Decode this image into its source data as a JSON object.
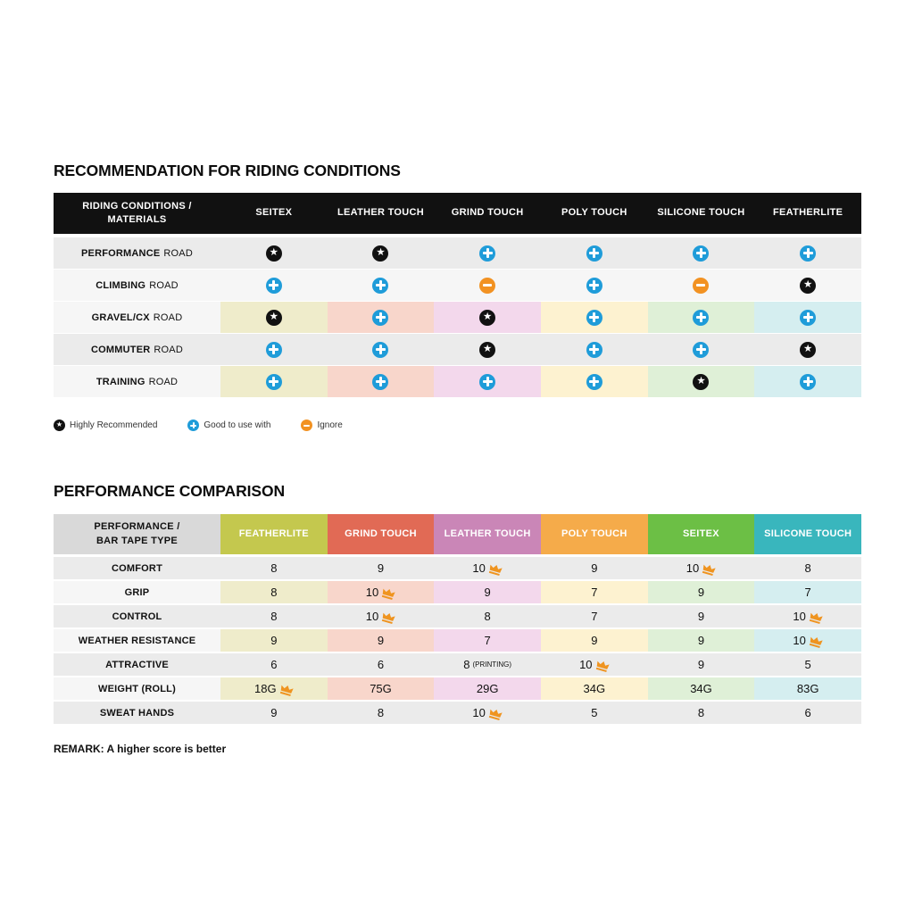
{
  "colors": {
    "table1_header_bg": "#111111",
    "star_black": "#111111",
    "blue": "#1f9cd9",
    "orange_ignore": "#f29222",
    "row_gray": "#ebebeb",
    "row_light": "#f6f6f6",
    "tints": [
      "#efeccb",
      "#f8d6cb",
      "#f3d8ec",
      "#fdf2d0",
      "#dff0d7",
      "#d5eef0"
    ],
    "perf_header": [
      "#d9d9d9",
      "#c4c84e",
      "#e16a55",
      "#ca86b7",
      "#f5ab4a",
      "#6cbf45",
      "#39b6bd"
    ],
    "crown": "#ef9420"
  },
  "chart_data": [
    {
      "type": "table",
      "title": "RECOMMENDATION FOR RIDING CONDITIONS",
      "columns": [
        "RIDING CONDITIONS /\nMATERIALS",
        "SEITEX",
        "LEATHER TOUCH",
        "GRIND TOUCH",
        "POLY TOUCH",
        "SILICONE TOUCH",
        "FEATHERLITE"
      ],
      "rows": [
        {
          "label_bold": "PERFORMANCE",
          "label_rest": "ROAD",
          "bg": "gray",
          "tinted": false,
          "cells": [
            "star",
            "star",
            "plus",
            "plus",
            "plus",
            "plus"
          ]
        },
        {
          "label_bold": "CLIMBING",
          "label_rest": "ROAD",
          "bg": "light",
          "tinted": false,
          "cells": [
            "plus",
            "plus",
            "ignore",
            "plus",
            "ignore",
            "star"
          ]
        },
        {
          "label_bold": "GRAVEL/CX",
          "label_rest": "ROAD",
          "bg": "light",
          "tinted": true,
          "cells": [
            "star",
            "plus",
            "star",
            "plus",
            "plus",
            "plus"
          ]
        },
        {
          "label_bold": "COMMUTER",
          "label_rest": "ROAD",
          "bg": "gray",
          "tinted": false,
          "cells": [
            "plus",
            "plus",
            "star",
            "plus",
            "plus",
            "star"
          ]
        },
        {
          "label_bold": "TRAINING",
          "label_rest": "ROAD",
          "bg": "light",
          "tinted": true,
          "cells": [
            "plus",
            "plus",
            "plus",
            "plus",
            "star",
            "plus"
          ]
        }
      ],
      "legend": [
        {
          "icon": "star",
          "label": "Highly Recommended"
        },
        {
          "icon": "plus",
          "label": "Good to use with"
        },
        {
          "icon": "ignore",
          "label": "Ignore"
        }
      ]
    },
    {
      "type": "table",
      "title": "PERFORMANCE COMPARISON",
      "columns": [
        "PERFORMANCE /\nBAR TAPE TYPE",
        "FEATHERLITE",
        "GRIND TOUCH",
        "LEATHER TOUCH",
        "POLY TOUCH",
        "SEITEX",
        "SILICONE TOUCH"
      ],
      "rows": [
        {
          "label": "COMFORT",
          "bg": "gray",
          "tinted": false,
          "cells": [
            {
              "v": "8"
            },
            {
              "v": "9"
            },
            {
              "v": "10",
              "crown": true
            },
            {
              "v": "9"
            },
            {
              "v": "10",
              "crown": true
            },
            {
              "v": "8"
            }
          ]
        },
        {
          "label": "GRIP",
          "bg": "light",
          "tinted": true,
          "cells": [
            {
              "v": "8"
            },
            {
              "v": "10",
              "crown": true
            },
            {
              "v": "9"
            },
            {
              "v": "7"
            },
            {
              "v": "9"
            },
            {
              "v": "7"
            }
          ]
        },
        {
          "label": "CONTROL",
          "bg": "gray",
          "tinted": false,
          "cells": [
            {
              "v": "8"
            },
            {
              "v": "10",
              "crown": true
            },
            {
              "v": "8"
            },
            {
              "v": "7"
            },
            {
              "v": "9"
            },
            {
              "v": "10",
              "crown": true
            }
          ]
        },
        {
          "label": "WEATHER RESISTANCE",
          "bg": "light",
          "tinted": true,
          "cells": [
            {
              "v": "9"
            },
            {
              "v": "9"
            },
            {
              "v": "7"
            },
            {
              "v": "9"
            },
            {
              "v": "9"
            },
            {
              "v": "10",
              "crown": true
            }
          ]
        },
        {
          "label": "ATTRACTIVE",
          "bg": "gray",
          "tinted": false,
          "cells": [
            {
              "v": "6"
            },
            {
              "v": "6"
            },
            {
              "v": "8",
              "suffix": "(PRINTING)"
            },
            {
              "v": "10",
              "crown": true
            },
            {
              "v": "9"
            },
            {
              "v": "5"
            }
          ]
        },
        {
          "label": "WEIGHT (ROLL)",
          "bg": "light",
          "tinted": true,
          "cells": [
            {
              "v": "18G",
              "crown": true
            },
            {
              "v": "75G"
            },
            {
              "v": "29G"
            },
            {
              "v": "34G"
            },
            {
              "v": "34G"
            },
            {
              "v": "83G"
            }
          ]
        },
        {
          "label": "SWEAT HANDS",
          "bg": "gray",
          "tinted": false,
          "cells": [
            {
              "v": "9"
            },
            {
              "v": "8"
            },
            {
              "v": "10",
              "crown": true
            },
            {
              "v": "5"
            },
            {
              "v": "8"
            },
            {
              "v": "6"
            }
          ]
        }
      ],
      "remark": "REMARK: A higher score is better"
    }
  ]
}
